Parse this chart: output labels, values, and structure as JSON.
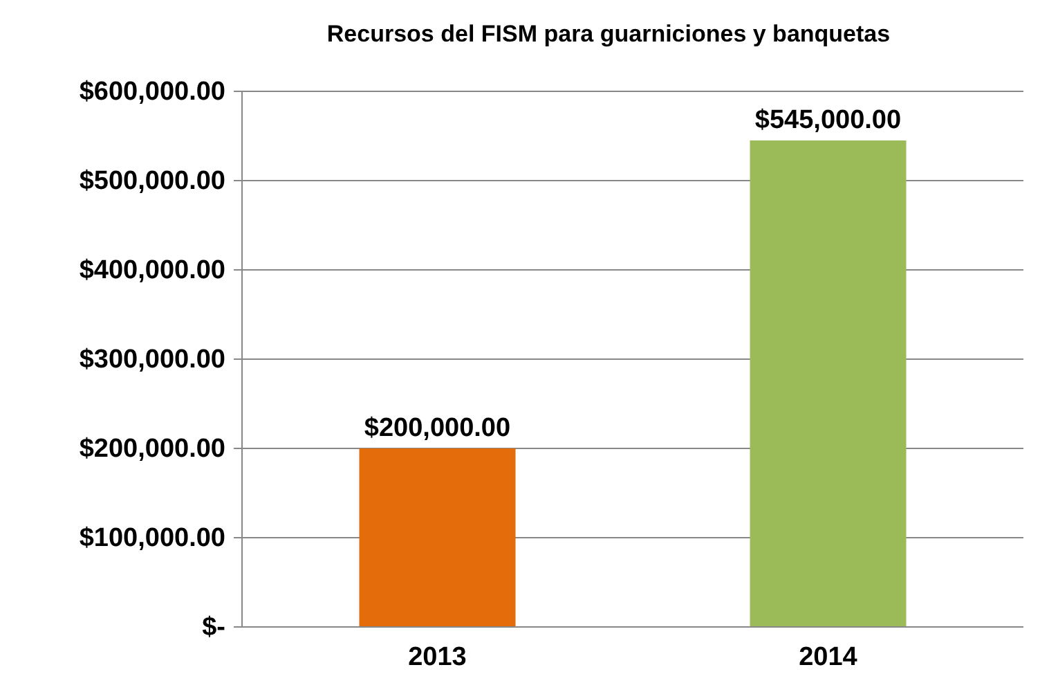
{
  "chart_data": {
    "type": "bar",
    "title": "Recursos del FISM para guarniciones y banquetas",
    "categories": [
      "2013",
      "2014"
    ],
    "values": [
      200000,
      545000
    ],
    "colors": [
      "#e46c0a",
      "#9bbb59"
    ],
    "value_labels": [
      "$200,000.00",
      "$545,000.00"
    ],
    "ylim": [
      0,
      600000
    ],
    "yticks": [
      {
        "value": 0,
        "label": "$-"
      },
      {
        "value": 100000,
        "label": "$100,000.00"
      },
      {
        "value": 200000,
        "label": "$200,000.00"
      },
      {
        "value": 300000,
        "label": "$300,000.00"
      },
      {
        "value": 400000,
        "label": "$400,000.00"
      },
      {
        "value": 500000,
        "label": "$500,000.00"
      },
      {
        "value": 600000,
        "label": "$600,000.00"
      }
    ],
    "grid": "y"
  }
}
